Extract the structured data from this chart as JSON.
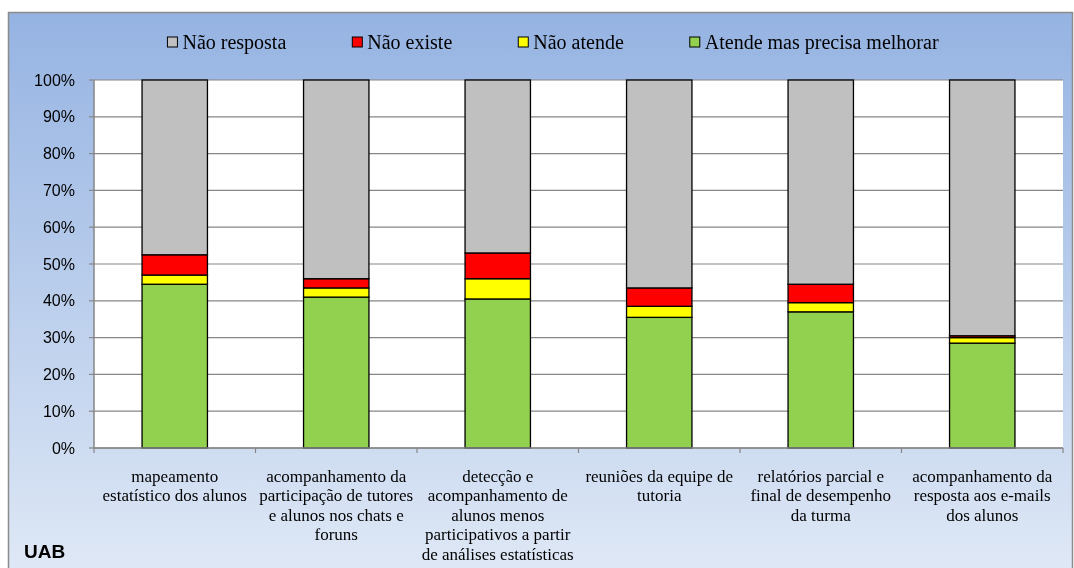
{
  "chart_data": {
    "type": "bar",
    "stacked": true,
    "categories": [
      "mapeamento estatístico dos alunos",
      "acompanhamento da participação de tutores e alunos nos chats e foruns",
      "detecção e acompanhamento de alunos menos participativos a partir de análises estatísticas",
      "reuniões da equipe de tutoria",
      "relatórios parcial e final de desempenho da turma",
      "acompanhamento da resposta aos e-mails dos alunos"
    ],
    "series": [
      {
        "name": "Atende mas precisa melhorar",
        "color": "#92d050",
        "values": [
          44.5,
          41,
          40.5,
          35.5,
          37,
          28.5
        ]
      },
      {
        "name": "Não atende",
        "color": "#ffff00",
        "values": [
          2.5,
          2.5,
          5.5,
          3,
          2.5,
          1.5
        ]
      },
      {
        "name": "Não existe",
        "color": "#ff0000",
        "values": [
          5.5,
          2.5,
          7,
          5,
          5,
          0.5
        ]
      },
      {
        "name": "Não resposta",
        "color": "#c0c0c0",
        "values": [
          47.5,
          54,
          47,
          56.5,
          55.5,
          69.5
        ]
      }
    ],
    "ylim": [
      0,
      100
    ],
    "yticks": [
      {
        "value": 0,
        "label": "0%"
      },
      {
        "value": 10,
        "label": "10%"
      },
      {
        "value": 20,
        "label": "20%"
      },
      {
        "value": 30,
        "label": "30%"
      },
      {
        "value": 40,
        "label": "40%"
      },
      {
        "value": 50,
        "label": "50%"
      },
      {
        "value": 60,
        "label": "60%"
      },
      {
        "value": 70,
        "label": "70%"
      },
      {
        "value": 80,
        "label": "80%"
      },
      {
        "value": 90,
        "label": "90%"
      },
      {
        "value": 100,
        "label": "100%"
      }
    ],
    "grid": "y",
    "legend": "top",
    "annotations": [
      "UAB"
    ]
  }
}
